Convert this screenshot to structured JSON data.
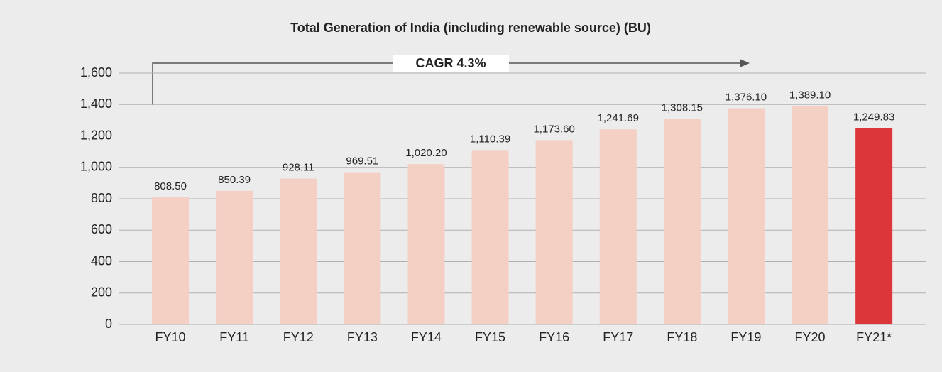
{
  "chart_data": {
    "type": "bar",
    "title": "Total Generation of India (including renewable source) (BU)",
    "annotation": "CAGR 4.3%",
    "categories": [
      "FY10",
      "FY11",
      "FY12",
      "FY13",
      "FY14",
      "FY15",
      "FY16",
      "FY17",
      "FY18",
      "FY19",
      "FY20",
      "FY21*"
    ],
    "values": [
      808.5,
      850.39,
      928.11,
      969.51,
      1020.2,
      1110.39,
      1173.6,
      1241.69,
      1308.15,
      1376.1,
      1389.1,
      1249.83
    ],
    "value_labels": [
      "808.50",
      "850.39",
      "928.11",
      "969.51",
      "1,020.20",
      "1,110.39",
      "1,173.60",
      "1,241.69",
      "1,308.15",
      "1,376.10",
      "1,389.10",
      "1,249.83"
    ],
    "colors": [
      "#f4cfc4",
      "#f4cfc4",
      "#f4cfc4",
      "#f4cfc4",
      "#f4cfc4",
      "#f4cfc4",
      "#f4cfc4",
      "#f4cfc4",
      "#f4cfc4",
      "#f4cfc4",
      "#f4cfc4",
      "#dc363b"
    ],
    "ylim": [
      0,
      1600
    ],
    "yticks": [
      0,
      200,
      400,
      600,
      800,
      {
        "value": 1000,
        "label": "1,000"
      },
      {
        "value": 1200,
        "label": "1,200"
      },
      {
        "value": 1400,
        "label": "1,400"
      },
      {
        "value": 1600,
        "label": "1,600"
      }
    ],
    "grid": true
  }
}
